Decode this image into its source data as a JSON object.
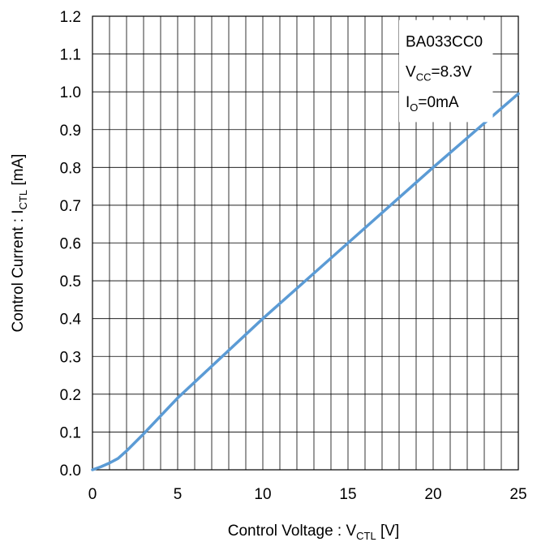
{
  "chart_data": {
    "type": "line",
    "xlabel": {
      "main": "Control Voltage : V",
      "sub": "CTL",
      "unit": " [V]"
    },
    "ylabel": {
      "main": "Control Current : I",
      "sub": "CTL",
      "unit": " [mA]"
    },
    "xlim": [
      0,
      25
    ],
    "ylim": [
      0,
      1.2
    ],
    "xticks": [
      "0",
      "5",
      "10",
      "15",
      "20",
      "25"
    ],
    "yticks": [
      "0.0",
      "0.1",
      "0.2",
      "0.3",
      "0.4",
      "0.5",
      "0.6",
      "0.7",
      "0.8",
      "0.9",
      "1.0",
      "1.1",
      "1.2"
    ],
    "x_minor_step": 1,
    "y_minor_step": 0.1,
    "grid": true,
    "legend_position": "top-right",
    "annotation": {
      "line1": "BA033CC0",
      "line2_main": "V",
      "line2_sub": "CC",
      "line2_rest": "=8.3V",
      "line3_main": "I",
      "line3_sub": "O",
      "line3_rest": "=0mA"
    },
    "series": [
      {
        "color": "#5b9bd5",
        "x": [
          0,
          0.5,
          1.0,
          1.5,
          2.0,
          3,
          5,
          10,
          15,
          20,
          25
        ],
        "y": [
          0,
          0.008,
          0.018,
          0.03,
          0.05,
          0.095,
          0.19,
          0.4,
          0.6,
          0.8,
          0.995
        ]
      }
    ]
  }
}
